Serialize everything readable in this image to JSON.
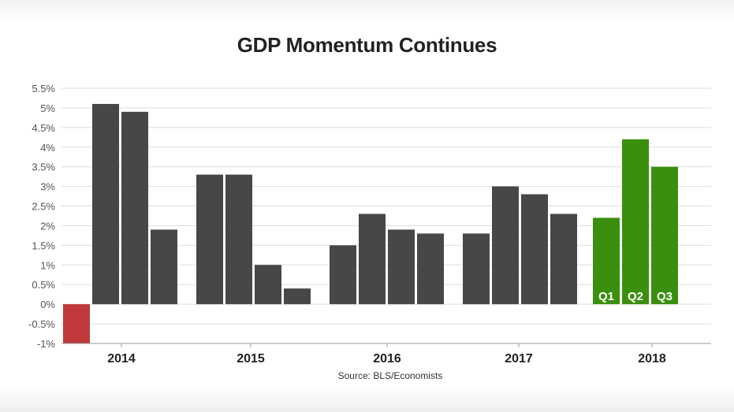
{
  "title": "GDP Momentum Continues",
  "source": "Source: BLS/Economists",
  "colors": {
    "bar": "#474747",
    "negative": "#c0393b",
    "highlight": "#3b8f0f",
    "grid": "#dddddd",
    "axis": "#999999"
  },
  "chart_data": {
    "type": "bar",
    "title": "GDP Momentum Continues",
    "xlabel": "",
    "ylabel": "",
    "ylim": [
      -1,
      5.5
    ],
    "yticks": [
      -1,
      -0.5,
      0,
      0.5,
      1,
      1.5,
      2,
      2.5,
      3,
      3.5,
      4,
      4.5,
      5,
      5.5
    ],
    "yticklabels": [
      "-1%",
      "-0.5%",
      "0%",
      "0.5%",
      "1%",
      "1.5%",
      "2%",
      "2.5%",
      "3%",
      "3.5%",
      "4%",
      "4.5%",
      "5%",
      "5.5%"
    ],
    "grid": true,
    "groups": [
      {
        "year": "2014",
        "values": [
          -1.0,
          5.1,
          4.9,
          1.9
        ],
        "labels": [
          "",
          "",
          "",
          ""
        ]
      },
      {
        "year": "2015",
        "values": [
          3.3,
          3.3,
          1.0,
          0.4
        ],
        "labels": [
          "",
          "",
          "",
          ""
        ]
      },
      {
        "year": "2016",
        "values": [
          1.5,
          2.3,
          1.9,
          1.8
        ],
        "labels": [
          "",
          "",
          "",
          ""
        ]
      },
      {
        "year": "2017",
        "values": [
          1.8,
          3.0,
          2.8,
          2.3
        ],
        "labels": [
          "",
          "",
          "",
          ""
        ]
      },
      {
        "year": "2018",
        "values": [
          2.2,
          4.2,
          3.5
        ],
        "labels": [
          "Q1",
          "Q2",
          "Q3"
        ]
      }
    ]
  }
}
